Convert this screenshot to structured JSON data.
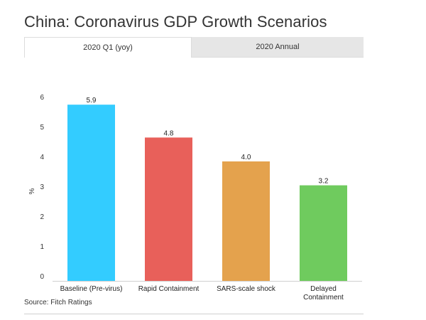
{
  "title": "China: Coronavirus GDP Growth Scenarios",
  "tabs": [
    {
      "label": "2020 Q1 (yoy)",
      "active": true
    },
    {
      "label": "2020 Annual",
      "active": false
    }
  ],
  "source": "Source: Fitch Ratings",
  "chart_data": {
    "type": "bar",
    "categories": [
      [
        "Baseline (Pre-virus)"
      ],
      [
        "Rapid Containment"
      ],
      [
        "SARS-scale shock"
      ],
      [
        "Delayed",
        "Containment"
      ]
    ],
    "values": [
      5.9,
      4.8,
      4.0,
      3.2
    ],
    "data_labels": [
      "5.9",
      "4.8",
      "4.0",
      "3.2"
    ],
    "colors": [
      "#33ccff",
      "#e8605a",
      "#e4a24d",
      "#6fcb5e"
    ],
    "ylabel": "%",
    "yticks": [
      0,
      1,
      2,
      3,
      4,
      5,
      6
    ],
    "ylim": [
      0,
      6
    ],
    "grid": false,
    "legend": "none"
  }
}
